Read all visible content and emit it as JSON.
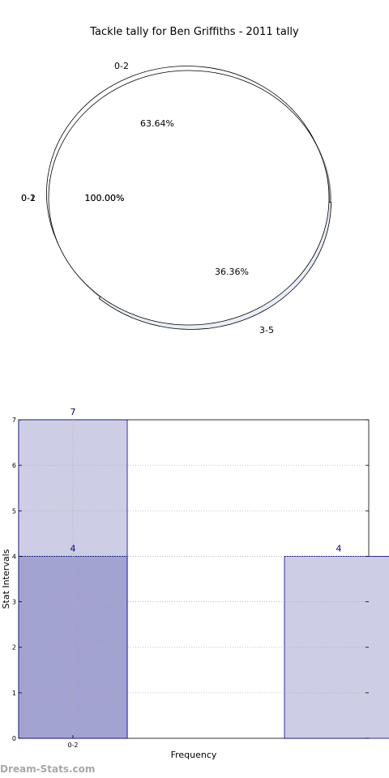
{
  "watermark": "Dream-Stats.com",
  "colors": {
    "pie_edge": "#000000",
    "pie_shadow": "#8c8c8c",
    "pie_slice_3_5": "#e8eef8",
    "bar_fill_light": "#cdcde6",
    "bar_fill_dark": "#a3a3d1",
    "bar_edge": "#00007f",
    "bar_label": "#00007f",
    "grid": "#b0b0b0"
  },
  "chart_data": [
    {
      "type": "pie",
      "title": "Tackle tally for Ben Griffiths - 2011 tally",
      "layers": [
        {
          "slices": [
            {
              "label": "0-2",
              "percent_label": "63.64%",
              "value": 63.64
            },
            {
              "label": "3-5",
              "percent_label": "36.36%",
              "value": 36.36
            }
          ]
        },
        {
          "slices": [
            {
              "label": "0-2",
              "percent_label": "100.00%",
              "value": 100.0
            }
          ]
        },
        {
          "slices": [
            {
              "label": "0-1",
              "percent_label": "100.00%",
              "value": 100.0
            }
          ]
        }
      ]
    },
    {
      "type": "bar",
      "xlabel": "Frequency",
      "ylabel": "Stat Intervals",
      "ylim": [
        0,
        7
      ],
      "yticks": [
        0,
        1,
        2,
        3,
        4,
        5,
        6,
        7
      ],
      "grid": true,
      "bars": [
        {
          "position": 0,
          "value": 7,
          "label": "7",
          "style": "light"
        },
        {
          "position": 0,
          "value": 4,
          "label": "4",
          "style": "dark"
        },
        {
          "position": 2,
          "value": 4,
          "label": "4",
          "style": "light"
        }
      ],
      "xticks": [
        {
          "position": 0,
          "label": "0-2"
        }
      ]
    }
  ]
}
